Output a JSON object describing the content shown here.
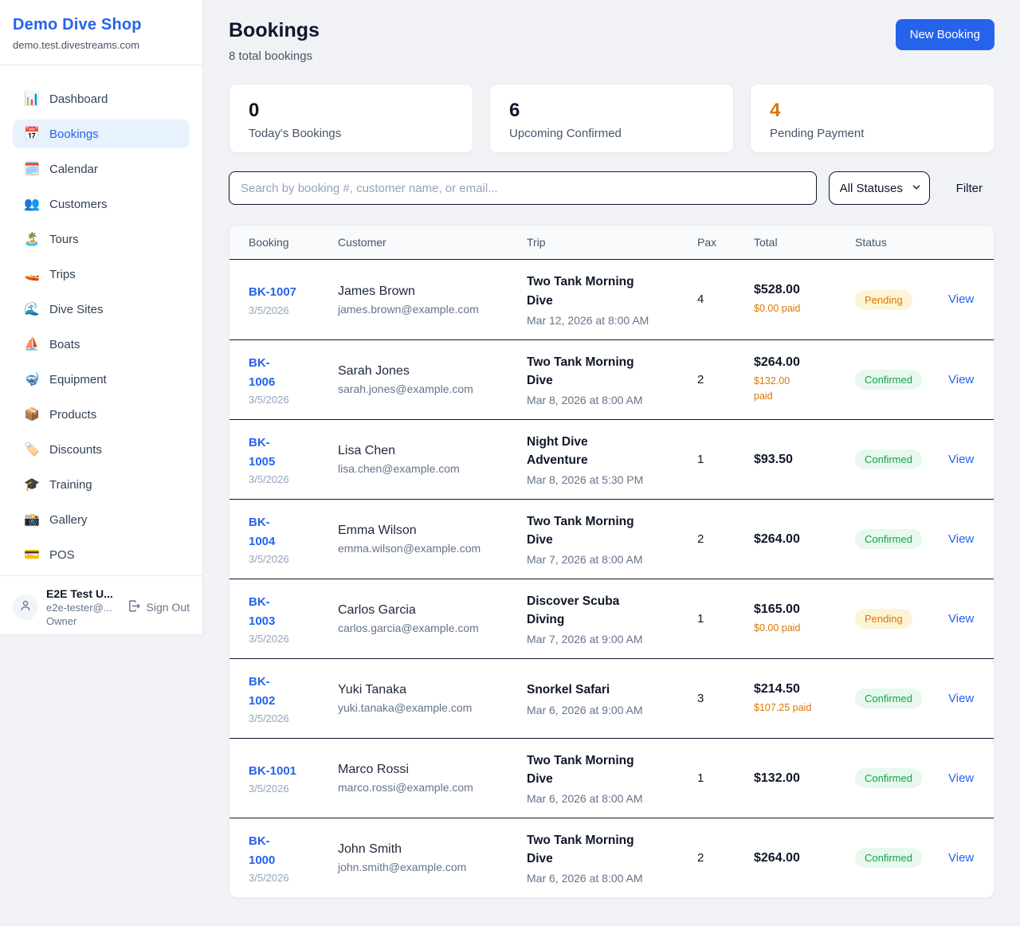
{
  "colors": {
    "accent": "#2563eb",
    "pending_text": "#d97706",
    "pending_bg": "#fdf4d5",
    "confirmed_text": "#16a34a",
    "confirmed_bg": "#e7f8ed",
    "link": "#2563eb"
  },
  "sidebar": {
    "brand": {
      "name": "Demo Dive Shop",
      "domain": "demo.test.divestreams.com"
    },
    "items": [
      {
        "icon": "📊",
        "label": "Dashboard",
        "active": false
      },
      {
        "icon": "📅",
        "label": "Bookings",
        "active": true
      },
      {
        "icon": "🗓️",
        "label": "Calendar",
        "active": false
      },
      {
        "icon": "👥",
        "label": "Customers",
        "active": false
      },
      {
        "icon": "🏝️",
        "label": "Tours",
        "active": false
      },
      {
        "icon": "🚤",
        "label": "Trips",
        "active": false
      },
      {
        "icon": "🌊",
        "label": "Dive Sites",
        "active": false
      },
      {
        "icon": "⛵",
        "label": "Boats",
        "active": false
      },
      {
        "icon": "🤿",
        "label": "Equipment",
        "active": false
      },
      {
        "icon": "📦",
        "label": "Products",
        "active": false
      },
      {
        "icon": "🏷️",
        "label": "Discounts",
        "active": false
      },
      {
        "icon": "🎓",
        "label": "Training",
        "active": false
      },
      {
        "icon": "📸",
        "label": "Gallery",
        "active": false
      },
      {
        "icon": "💳",
        "label": "POS",
        "active": false
      }
    ],
    "user": {
      "name": "E2E Test U...",
      "email": "e2e-tester@...",
      "role": "Owner",
      "sign_out_label": "Sign Out"
    }
  },
  "header": {
    "title": "Bookings",
    "subtitle": "8 total bookings",
    "new_booking_label": "New Booking"
  },
  "stats": [
    {
      "value": "0",
      "label": "Today's Bookings",
      "accent": false
    },
    {
      "value": "6",
      "label": "Upcoming Confirmed",
      "accent": false
    },
    {
      "value": "4",
      "label": "Pending Payment",
      "accent": true
    }
  ],
  "filters": {
    "search_placeholder": "Search by booking #, customer name, or email...",
    "status_selected": "All Statuses",
    "filter_label": "Filter"
  },
  "table": {
    "columns": [
      "Booking",
      "Customer",
      "Trip",
      "Pax",
      "Total",
      "Status"
    ],
    "rows": [
      {
        "id": "BK-1007",
        "date": "3/5/2026",
        "customer": "James Brown",
        "email": "james.brown@example.com",
        "trip": "Two Tank Morning Dive",
        "datetime": "Mar 12, 2026 at 8:00 AM",
        "pax": "4",
        "total": "$528.00",
        "paid": "$0.00 paid",
        "status": "Pending",
        "view": "View"
      },
      {
        "id": "BK-\n1006",
        "date": "3/5/2026",
        "customer": "Sarah Jones",
        "email": "sarah.jones@example.com",
        "trip": "Two Tank Morning Dive",
        "datetime": "Mar 8, 2026 at 8:00 AM",
        "pax": "2",
        "total": "$264.00",
        "paid": "$132.00\npaid",
        "status": "Confirmed",
        "view": "View"
      },
      {
        "id": "BK-\n1005",
        "date": "3/5/2026",
        "customer": "Lisa Chen",
        "email": "lisa.chen@example.com",
        "trip": "Night Dive Adventure",
        "datetime": "Mar 8, 2026 at 5:30 PM",
        "pax": "1",
        "total": "$93.50",
        "status": "Confirmed",
        "view": "View"
      },
      {
        "id": "BK-\n1004",
        "date": "3/5/2026",
        "customer": "Emma Wilson",
        "email": "emma.wilson@example.com",
        "trip": "Two Tank Morning Dive",
        "datetime": "Mar 7, 2026 at 8:00 AM",
        "pax": "2",
        "total": "$264.00",
        "status": "Confirmed",
        "view": "View"
      },
      {
        "id": "BK-\n1003",
        "date": "3/5/2026",
        "customer": "Carlos Garcia",
        "email": "carlos.garcia@example.com",
        "trip": "Discover Scuba Diving",
        "datetime": "Mar 7, 2026 at 9:00 AM",
        "pax": "1",
        "total": "$165.00",
        "paid": "$0.00 paid",
        "status": "Pending",
        "view": "View"
      },
      {
        "id": "BK-\n1002",
        "date": "3/5/2026",
        "customer": "Yuki Tanaka",
        "email": "yuki.tanaka@example.com",
        "trip": "Snorkel Safari",
        "datetime": "Mar 6, 2026 at 9:00 AM",
        "pax": "3",
        "total": "$214.50",
        "paid": "$107.25 paid",
        "status": "Confirmed",
        "view": "View"
      },
      {
        "id": "BK-1001",
        "date": "3/5/2026",
        "customer": "Marco Rossi",
        "email": "marco.rossi@example.com",
        "trip": "Two Tank Morning Dive",
        "datetime": "Mar 6, 2026 at 8:00 AM",
        "pax": "1",
        "total": "$132.00",
        "status": "Confirmed",
        "view": "View"
      },
      {
        "id": "BK-\n1000",
        "date": "3/5/2026",
        "customer": "John Smith",
        "email": "john.smith@example.com",
        "trip": "Two Tank Morning Dive",
        "datetime": "Mar 6, 2026 at 8:00 AM",
        "pax": "2",
        "total": "$264.00",
        "status": "Confirmed",
        "view": "View"
      }
    ]
  }
}
